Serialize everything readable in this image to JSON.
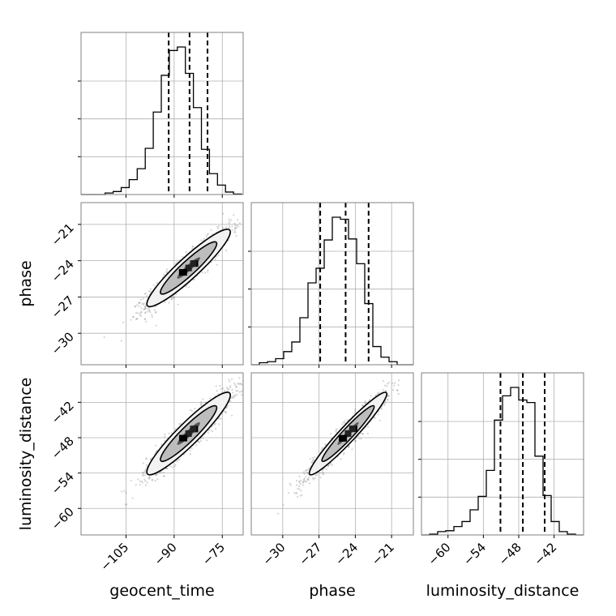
{
  "chart_data": {
    "type": "corner",
    "parameters": [
      "geocent_time",
      "phase",
      "luminosity_distance"
    ],
    "axis_labels": {
      "geocent_time": "geocent_time",
      "phase": "phase",
      "luminosity_distance": "luminosity_distance"
    },
    "ticks": {
      "geocent_time": [
        {
          "v": -105,
          "t": "−105"
        },
        {
          "v": -90,
          "t": "−90"
        },
        {
          "v": -75,
          "t": "−75"
        }
      ],
      "phase": [
        {
          "v": -30,
          "t": "−30"
        },
        {
          "v": -27,
          "t": "−27"
        },
        {
          "v": -24,
          "t": "−24"
        },
        {
          "v": -21,
          "t": "−21"
        }
      ],
      "luminosity_distance": [
        {
          "v": -60,
          "t": "−60"
        },
        {
          "v": -54,
          "t": "−54"
        },
        {
          "v": -48,
          "t": "−48"
        },
        {
          "v": -42,
          "t": "−42"
        }
      ]
    },
    "ranges": {
      "geocent_time": [
        -119,
        -68.5
      ],
      "phase": [
        -32.6,
        -19.2
      ],
      "luminosity_distance": [
        -64.5,
        -37
      ]
    },
    "grid": true,
    "histograms": [
      {
        "parameter": "geocent_time",
        "bin_edges": [
          -119,
          -116.5,
          -114,
          -111.5,
          -109,
          -106.5,
          -104,
          -101.5,
          -99,
          -96.5,
          -94,
          -91.5,
          -89,
          -86.5,
          -84,
          -81.5,
          -79,
          -76.5,
          -74,
          -71.5,
          -69
        ],
        "counts": [
          0,
          0,
          0,
          3,
          6,
          14,
          30,
          52,
          93,
          166,
          240,
          290,
          297,
          244,
          175,
          91,
          42,
          19,
          5,
          1
        ],
        "quantiles": [
          -91.7,
          -85.2,
          -79.6
        ]
      },
      {
        "parameter": "phase",
        "bin_edges": [
          -32.6,
          -31.93,
          -31.26,
          -30.59,
          -29.92,
          -29.25,
          -28.58,
          -27.91,
          -27.24,
          -26.57,
          -25.9,
          -25.23,
          -24.56,
          -23.89,
          -23.22,
          -22.55,
          -21.88,
          -21.21,
          -20.54,
          -19.87,
          -19.2
        ],
        "counts": [
          0,
          4,
          6,
          12,
          26,
          45,
          93,
          162,
          191,
          247,
          292,
          288,
          249,
          200,
          121,
          36,
          15,
          6,
          0,
          0
        ],
        "quantiles": [
          -26.9,
          -24.8,
          -22.9
        ]
      },
      {
        "parameter": "luminosity_distance",
        "bin_edges": [
          -64.5,
          -63.125,
          -61.75,
          -60.375,
          -59,
          -57.625,
          -56.25,
          -54.875,
          -53.5,
          -52.125,
          -50.75,
          -49.375,
          -48,
          -46.625,
          -45.25,
          -43.875,
          -42.5,
          -41.125,
          -39.75,
          -38.375,
          -37
        ],
        "counts": [
          0,
          1,
          4,
          5,
          10,
          16,
          30,
          46,
          77,
          137,
          166,
          176,
          161,
          158,
          94,
          47,
          16,
          4,
          1,
          0
        ],
        "quantiles": [
          -51.1,
          -47.3,
          -43.6
        ]
      }
    ],
    "pairs": [
      {
        "x": "geocent_time",
        "y": "phase",
        "center": [
          -85.5,
          -24.6
        ],
        "sigma": [
          6.5,
          1.6
        ],
        "rho": 0.93
      },
      {
        "x": "geocent_time",
        "y": "luminosity_distance",
        "center": [
          -85.5,
          -47.3
        ],
        "sigma": [
          6.5,
          3.5
        ],
        "rho": 0.93
      },
      {
        "x": "phase",
        "y": "luminosity_distance",
        "center": [
          -24.6,
          -47.3
        ],
        "sigma": [
          1.6,
          3.5
        ],
        "rho": 0.96
      }
    ]
  }
}
